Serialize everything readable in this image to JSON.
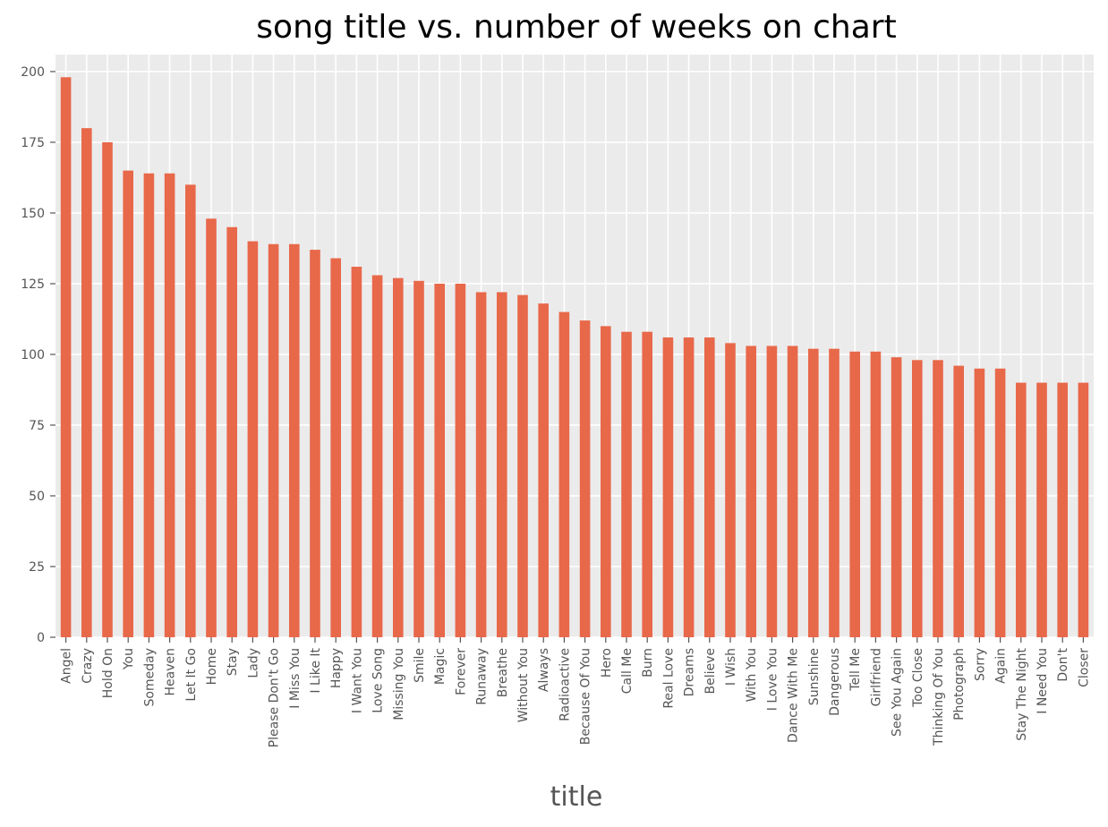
{
  "chart_data": {
    "type": "bar",
    "title": "song title vs. number of weeks on chart",
    "xlabel": "title",
    "ylabel": "",
    "ylim": [
      0,
      206
    ],
    "yticks": [
      "0",
      "25",
      "50",
      "75",
      "100",
      "125",
      "150",
      "175",
      "200"
    ],
    "grid": true,
    "bar_color": "#E8684A",
    "background_color": "#EBEBEB",
    "categories": [
      "Angel",
      "Crazy",
      "Hold On",
      "You",
      "Someday",
      "Heaven",
      "Let It Go",
      "Home",
      "Stay",
      "Lady",
      "Please Don't Go",
      "I Miss You",
      "I Like It",
      "Happy",
      "I Want You",
      "Love Song",
      "Missing You",
      "Smile",
      "Magic",
      "Forever",
      "Runaway",
      "Breathe",
      "Without You",
      "Always",
      "Radioactive",
      "Because Of You",
      "Hero",
      "Call Me",
      "Burn",
      "Real Love",
      "Dreams",
      "Believe",
      "I Wish",
      "With You",
      "I Love You",
      "Dance With Me",
      "Sunshine",
      "Dangerous",
      "Tell Me",
      "Girlfriend",
      "See You Again",
      "Too Close",
      "Thinking Of You",
      "Photograph",
      "Sorry",
      "Again",
      "Stay The Night",
      "I Need You",
      "Don't",
      "Closer"
    ],
    "values": [
      198,
      180,
      175,
      165,
      164,
      164,
      160,
      148,
      145,
      140,
      139,
      139,
      137,
      134,
      131,
      128,
      127,
      126,
      125,
      125,
      122,
      122,
      121,
      118,
      115,
      112,
      110,
      108,
      108,
      106,
      106,
      106,
      104,
      103,
      103,
      103,
      102,
      102,
      101,
      101,
      99,
      98,
      98,
      96,
      95,
      95,
      90,
      90,
      90,
      90
    ]
  }
}
